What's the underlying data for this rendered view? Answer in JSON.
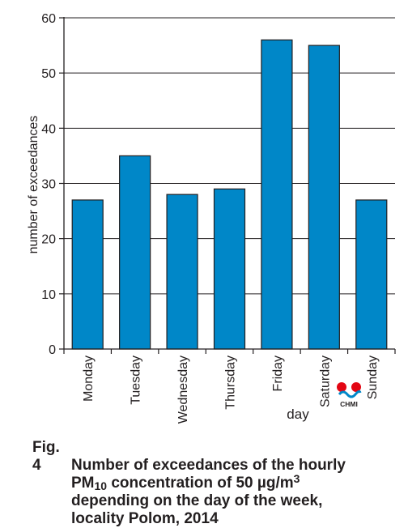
{
  "chart_data": {
    "type": "bar",
    "categories": [
      "Monday",
      "Tuesday",
      "Wednesday",
      "Thursday",
      "Friday",
      "Saturday",
      "Sunday"
    ],
    "values": [
      27,
      35,
      28,
      29,
      56,
      55,
      27
    ],
    "xlabel": "day",
    "ylabel": "number of exceedances",
    "ylim": [
      0,
      60
    ],
    "yticks": [
      0,
      10,
      20,
      30,
      40,
      50,
      60
    ],
    "grid": "horizontal",
    "bar_color": "#0087c8",
    "bar_stroke": "#231f20"
  },
  "logo": {
    "text": "CHMI",
    "dot_color": "#e30613",
    "wave_color": "#0087c8"
  },
  "caption": {
    "fig": "Fig. 4",
    "line1": "Number of exceedances of the hourly",
    "pm": "PM",
    "pm_sub": "10",
    "line2_rest": " concentration of 50 µg/m",
    "unit_sup": "3",
    "line3": "depending on the day of the week,",
    "line4": "locality Polom, 2014"
  }
}
